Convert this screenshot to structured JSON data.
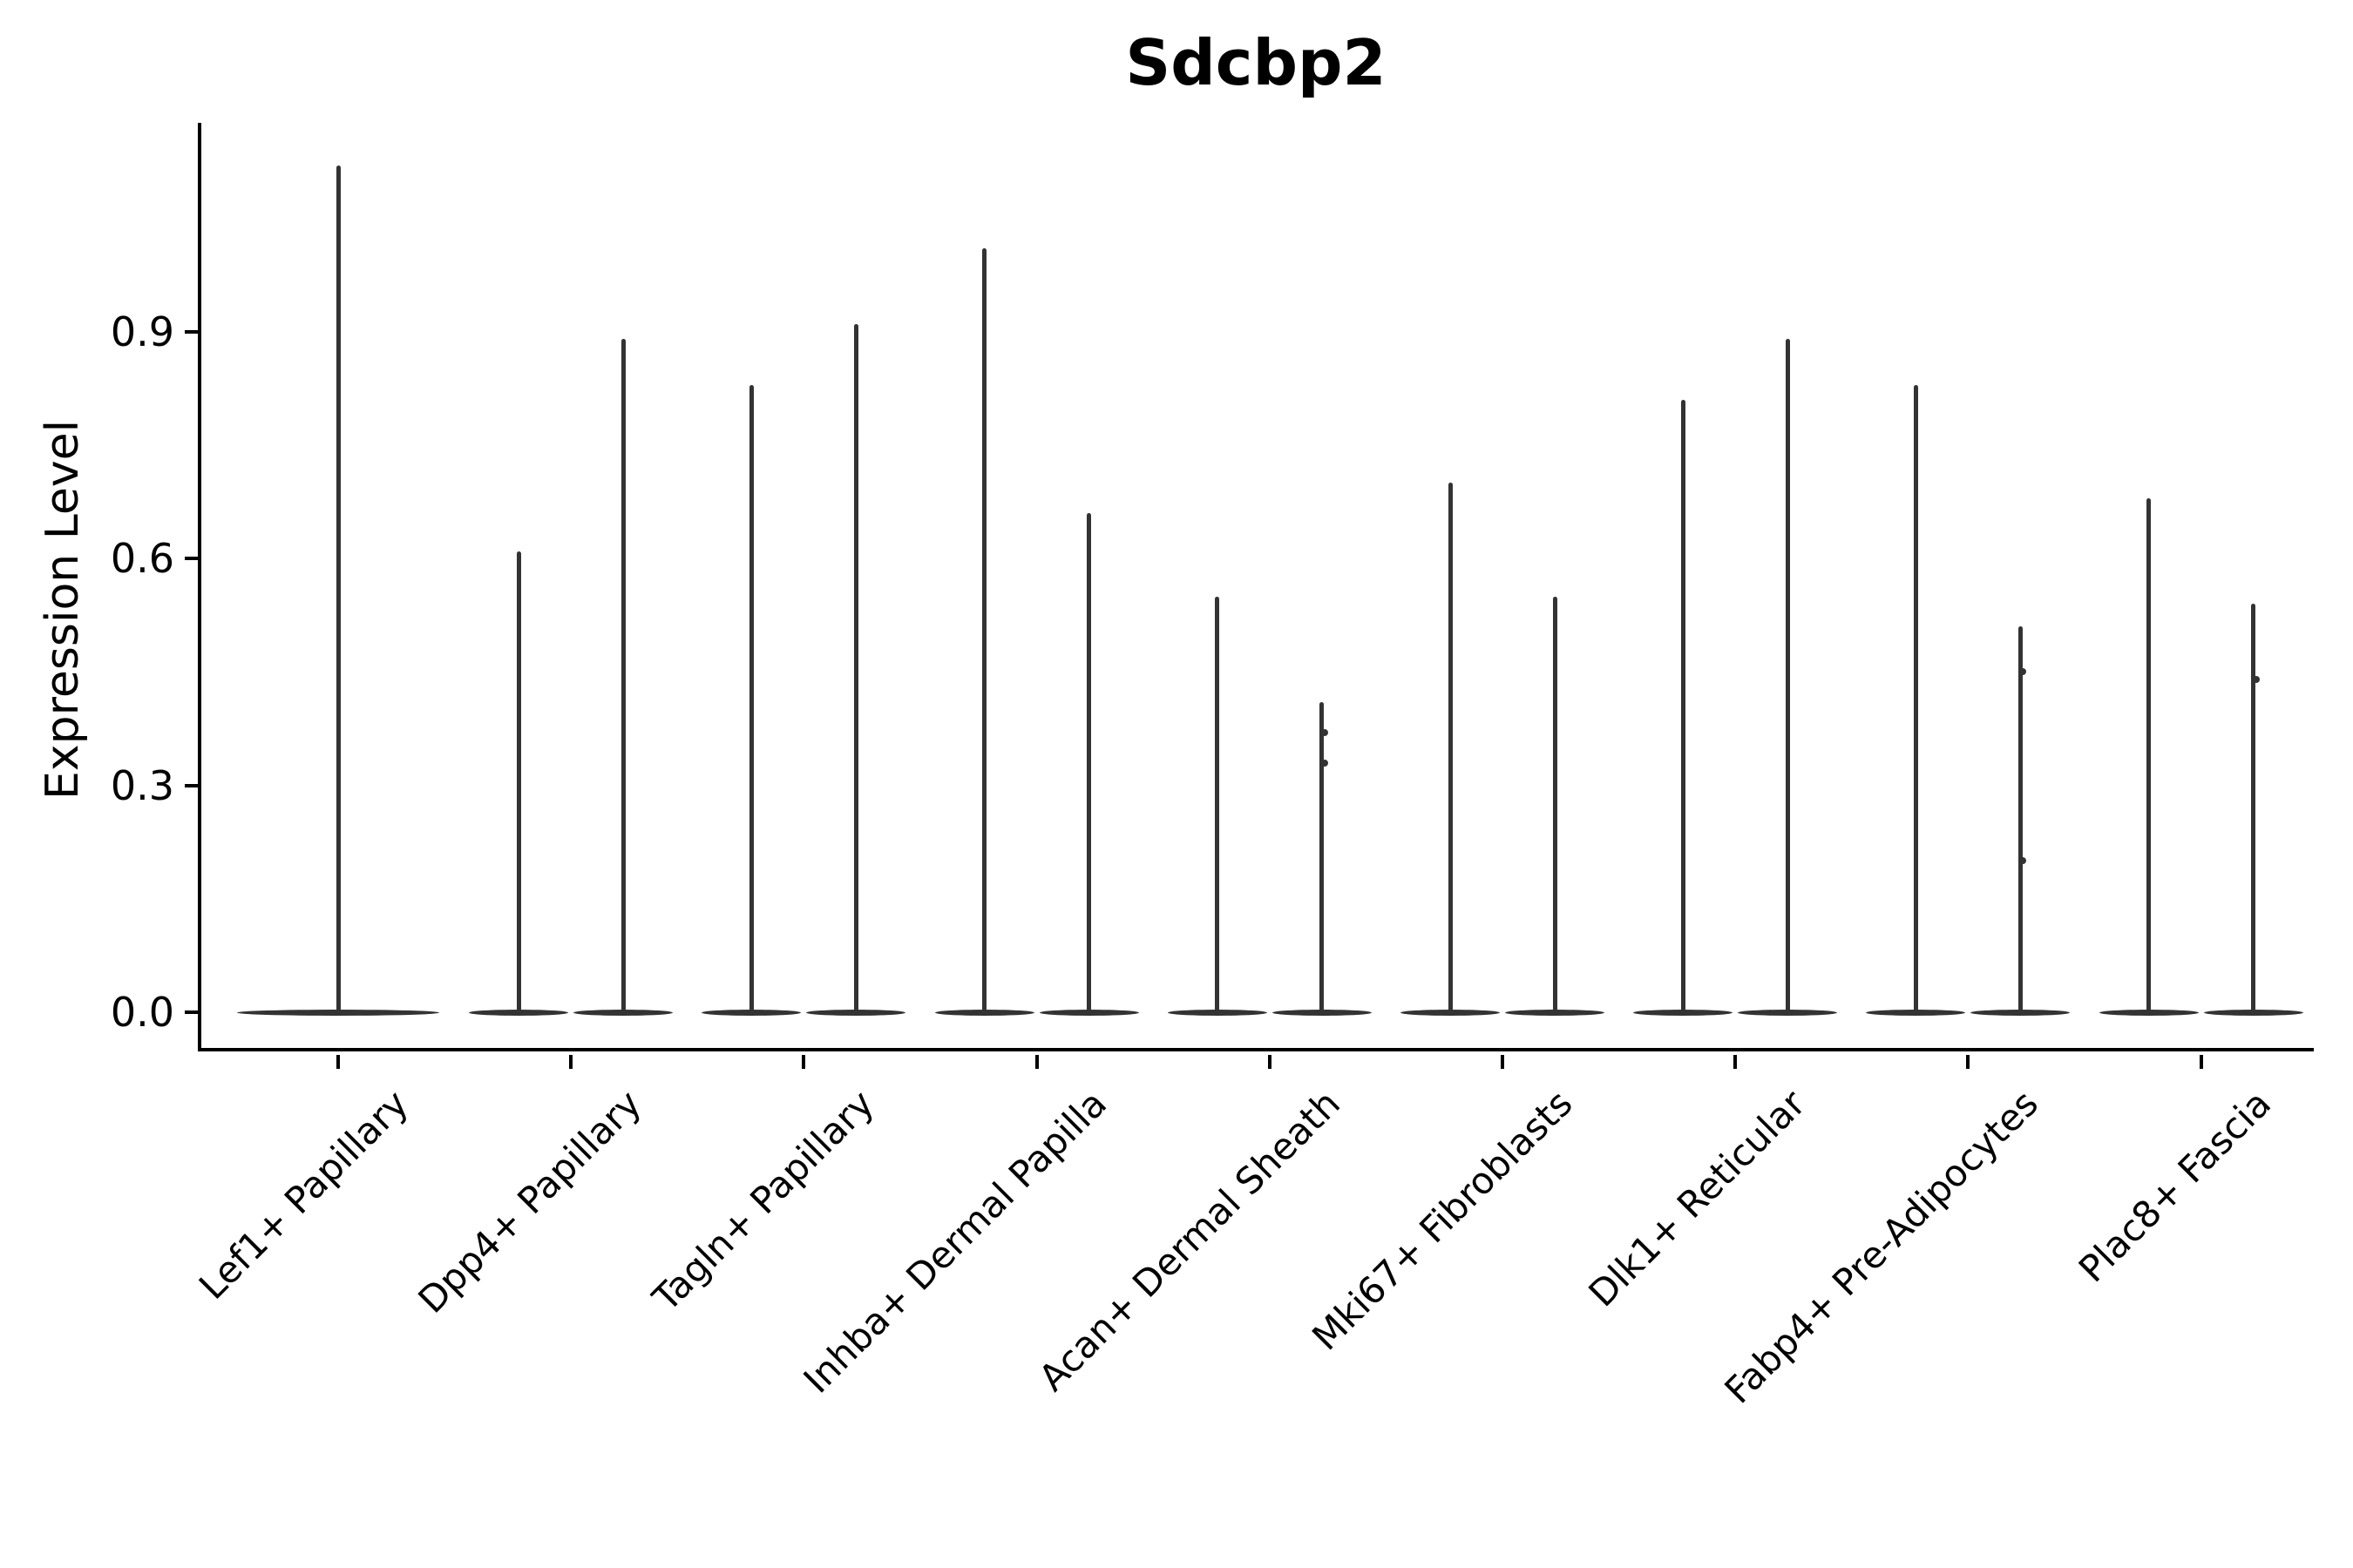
{
  "figure_title": "Sdcbp2",
  "colors": {
    "background": "#ffffff",
    "violin": "#333333",
    "axis": "#000000",
    "text": "#000000"
  },
  "chart_data": {
    "type": "violin",
    "title": "Sdcbp2",
    "ylabel": "Expression Level",
    "xlabel": "",
    "ylim": [
      0,
      1.18
    ],
    "yticks": [
      0.0,
      0.3,
      0.6,
      0.9
    ],
    "ytick_labels": [
      "0.0",
      "0.3",
      "0.6",
      "0.9"
    ],
    "grid": false,
    "legend": "none",
    "shape_note": "Each violin is a needle: density mass flattened at 0 with a thin spike to the max expression value; first category has one full-width violin, all others have two half-width violins.",
    "categories": [
      {
        "label": "Lef1+ Papillary",
        "violin_peaks": [
          1.12
        ],
        "dots": []
      },
      {
        "label": "Dpp4+ Papillary",
        "violin_peaks": [
          0.61,
          0.89
        ],
        "dots": []
      },
      {
        "label": "Tagln+ Papillary",
        "violin_peaks": [
          0.83,
          0.91
        ],
        "dots": []
      },
      {
        "label": "Inhba+ Dermal Papilla",
        "violin_peaks": [
          1.01,
          0.66
        ],
        "dots": []
      },
      {
        "label": "Acan+ Dermal Sheath",
        "violin_peaks": [
          0.55,
          0.41
        ],
        "dots": [
          [
            1,
            0.37
          ],
          [
            1,
            0.33
          ]
        ]
      },
      {
        "label": "Mki67+ Fibroblasts",
        "violin_peaks": [
          0.7,
          0.55
        ],
        "dots": []
      },
      {
        "label": "Dlk1+ Reticular",
        "violin_peaks": [
          0.81,
          0.89
        ],
        "dots": []
      },
      {
        "label": "Fabp4+ Pre-Adipocytes",
        "violin_peaks": [
          0.83,
          0.51
        ],
        "dots": [
          [
            1,
            0.45
          ],
          [
            1,
            0.2
          ]
        ]
      },
      {
        "label": "Plac8+ Fascia",
        "violin_peaks": [
          0.68,
          0.54
        ],
        "dots": [
          [
            1,
            0.44
          ]
        ]
      }
    ]
  }
}
